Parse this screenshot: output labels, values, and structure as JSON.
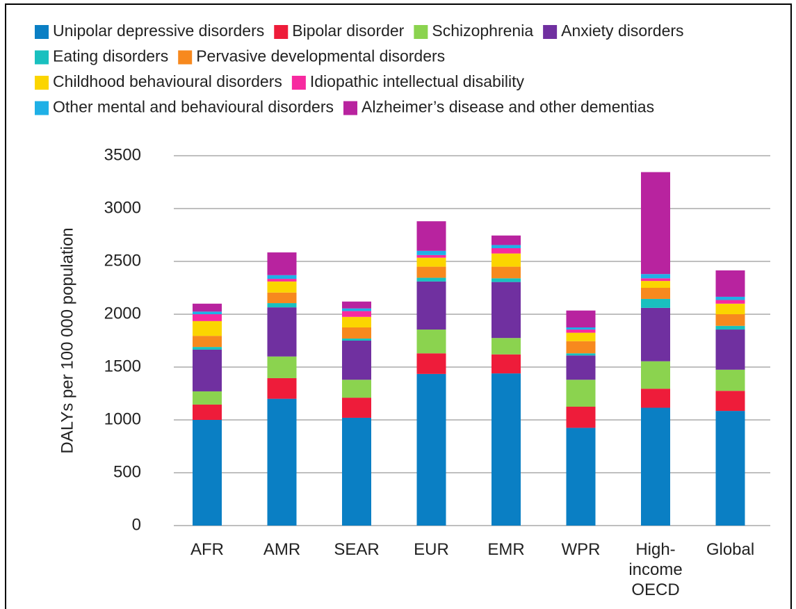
{
  "chart_data": {
    "type": "stacked_bar",
    "y_label": "DALYs per 100 000 population",
    "categories": [
      "AFR",
      "AMR",
      "SEAR",
      "EUR",
      "EMR",
      "WPR",
      "High-income OECD",
      "Global"
    ],
    "ylim": [
      0,
      3500
    ],
    "yticks": [
      0,
      500,
      1000,
      1500,
      2000,
      2500,
      3000,
      3500
    ],
    "grid": true,
    "series": [
      {
        "name": "Unipolar depressive disorders",
        "color": "#0a7fc4",
        "values": [
          1000,
          1200,
          1020,
          1435,
          1440,
          925,
          1115,
          1085
        ]
      },
      {
        "name": "Bipolar disorder",
        "color": "#ee1c3a",
        "values": [
          145,
          195,
          190,
          195,
          180,
          200,
          180,
          190
        ]
      },
      {
        "name": "Schizophrenia",
        "color": "#8bd34f",
        "values": [
          125,
          205,
          170,
          225,
          155,
          255,
          260,
          200
        ]
      },
      {
        "name": "Anxiety disorders",
        "color": "#7030a0",
        "values": [
          395,
          465,
          370,
          455,
          530,
          230,
          505,
          380
        ]
      },
      {
        "name": "Eating disorders",
        "color": "#19c0bf",
        "values": [
          25,
          40,
          20,
          35,
          35,
          20,
          85,
          35
        ]
      },
      {
        "name": "Pervasive developmental disorders",
        "color": "#f7891e",
        "values": [
          105,
          100,
          105,
          105,
          110,
          115,
          105,
          110
        ]
      },
      {
        "name": "Childhood behavioural disorders",
        "color": "#fbd500",
        "values": [
          140,
          105,
          100,
          85,
          125,
          80,
          65,
          100
        ]
      },
      {
        "name": "Idiopathic intellectual disability",
        "color": "#f72aa0",
        "values": [
          65,
          25,
          55,
          25,
          50,
          30,
          25,
          35
        ]
      },
      {
        "name": "Other mental and behavioural disorders",
        "color": "#1fb0e6",
        "values": [
          25,
          35,
          25,
          40,
          30,
          20,
          40,
          30
        ]
      },
      {
        "name": "Alzheimer’s disease and other dementias",
        "color": "#b8239f",
        "values": [
          75,
          215,
          65,
          280,
          90,
          160,
          965,
          250
        ]
      }
    ]
  }
}
